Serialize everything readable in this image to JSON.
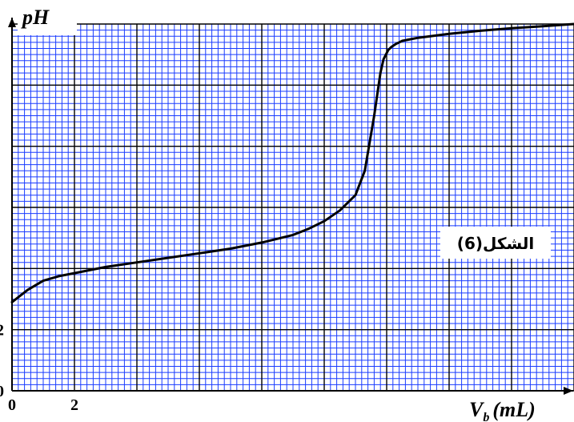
{
  "chart_data": {
    "type": "line",
    "title": "",
    "figure_label": "(الشكل(6",
    "ylabel": "pH",
    "xlabel_main": "V",
    "xlabel_sub": "b",
    "xlabel_unit": "(mL)",
    "x_tick_labels": [
      "0",
      "2"
    ],
    "y_tick_labels": [
      "0",
      "2"
    ],
    "xlim": [
      0,
      18
    ],
    "ylim": [
      0,
      12
    ],
    "grid": true,
    "grid_color": "#1a3cff",
    "major_grid_color": "#000000",
    "curve_color": "#000000",
    "series": [
      {
        "x": [
          0,
          0.5,
          1,
          1.5,
          2,
          3,
          4,
          5,
          6,
          7,
          8,
          9,
          9.5,
          10,
          10.5,
          11,
          11.3,
          11.6,
          11.8,
          11.9,
          12.0,
          12.05,
          12.15,
          12.3,
          12.5,
          13,
          14,
          15,
          16,
          17,
          18
        ],
        "y": [
          2.9,
          3.3,
          3.6,
          3.75,
          3.85,
          4.05,
          4.2,
          4.35,
          4.5,
          4.65,
          4.85,
          5.1,
          5.3,
          5.55,
          5.9,
          6.4,
          7.2,
          9.0,
          10.4,
          10.85,
          11.05,
          11.15,
          11.25,
          11.35,
          11.45,
          11.55,
          11.68,
          11.78,
          11.86,
          11.93,
          12.0
        ]
      }
    ]
  }
}
